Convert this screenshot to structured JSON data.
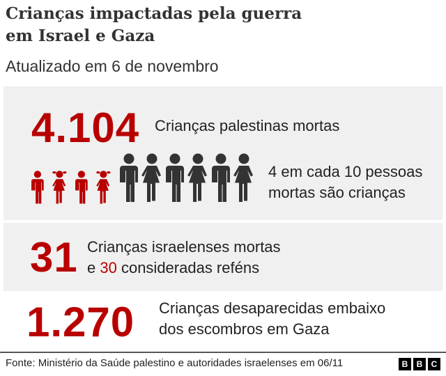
{
  "header": {
    "title_line1": "Crianças impactadas pela guerra",
    "title_line2": "em Israel e Gaza",
    "subtitle": "Atualizado em 6 de novembro"
  },
  "stats": [
    {
      "number": "4.104",
      "label": "Crianças palestinas mortas",
      "ratio_line1": "4 em cada 10 pessoas",
      "ratio_line2": "mortas são crianças",
      "children_of_ten": 4
    },
    {
      "number": "31",
      "label_line1": "Crianças israelenses mortas",
      "label_line2_pre": "e ",
      "label_line2_num": "30",
      "label_line2_post": " consideradas reféns"
    },
    {
      "number": "1.270",
      "label_line1": "Crianças desaparecidas embaixo",
      "label_line2": "dos escombros em Gaza"
    }
  ],
  "footer": {
    "source": "Fonte: Ministério da Saúde palestino e autoridades israelenses em 06/11",
    "logo": [
      "B",
      "B",
      "C"
    ]
  },
  "colors": {
    "accent": "#b80000",
    "adult": "#333333",
    "panel": "#f0f0f0"
  }
}
